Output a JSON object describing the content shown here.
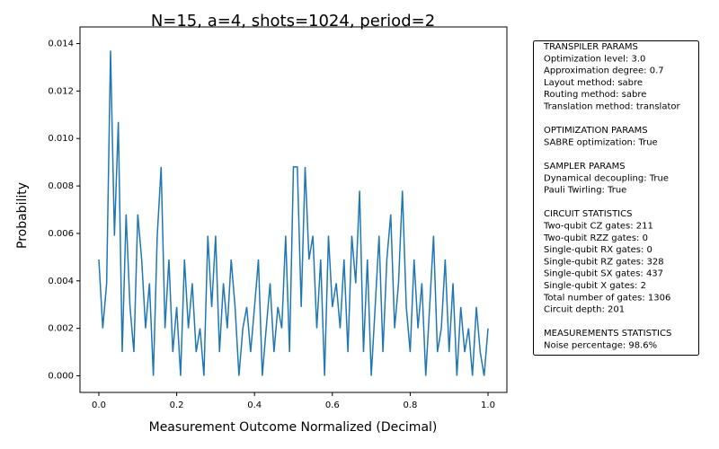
{
  "chart_data": {
    "type": "line",
    "title": "N=15, a=4, shots=1024, period=2",
    "x_label": "Measurement Outcome Normalized (Decimal)",
    "y_label": "Probability",
    "x": [
      0,
      0.01,
      0.02,
      0.03,
      0.04,
      0.05,
      0.06,
      0.07,
      0.08,
      0.09,
      0.1,
      0.11,
      0.12,
      0.13,
      0.14,
      0.15,
      0.16,
      0.17,
      0.18,
      0.19,
      0.2,
      0.21,
      0.22,
      0.23,
      0.24,
      0.25,
      0.26,
      0.27,
      0.28,
      0.29,
      0.3,
      0.31,
      0.32,
      0.33,
      0.34,
      0.35,
      0.36,
      0.37,
      0.38,
      0.39,
      0.4,
      0.41,
      0.42,
      0.43,
      0.44,
      0.45,
      0.46,
      0.47,
      0.48,
      0.49,
      0.5,
      0.51,
      0.52,
      0.53,
      0.54,
      0.55,
      0.56,
      0.57,
      0.58,
      0.59,
      0.6,
      0.61,
      0.62,
      0.63,
      0.64,
      0.65,
      0.66,
      0.67,
      0.68,
      0.69,
      0.7,
      0.71,
      0.72,
      0.73,
      0.74,
      0.75,
      0.76,
      0.77,
      0.78,
      0.79,
      0.8,
      0.81,
      0.82,
      0.83,
      0.84,
      0.85,
      0.86,
      0.87,
      0.88,
      0.89,
      0.9,
      0.91,
      0.92,
      0.93,
      0.94,
      0.95,
      0.96,
      0.97,
      0.98,
      0.99,
      1.0
    ],
    "series": [
      {
        "color": "#1f77b4",
        "values": [
          0.0049,
          0.002,
          0.0039,
          0.0137,
          0.0059,
          0.0107,
          0.001,
          0.0068,
          0.0029,
          0.001,
          0.0068,
          0.0049,
          0.002,
          0.0039,
          0.0,
          0.0059,
          0.0088,
          0.002,
          0.0049,
          0.001,
          0.0029,
          0.0,
          0.0049,
          0.002,
          0.0039,
          0.001,
          0.002,
          0.0,
          0.0059,
          0.0029,
          0.0059,
          0.001,
          0.0039,
          0.002,
          0.0049,
          0.0029,
          0.0,
          0.002,
          0.0029,
          0.001,
          0.0029,
          0.0049,
          0.0,
          0.002,
          0.0039,
          0.001,
          0.0029,
          0.002,
          0.0059,
          0.001,
          0.0088,
          0.0088,
          0.0029,
          0.0088,
          0.0049,
          0.0059,
          0.002,
          0.0049,
          0.0,
          0.0059,
          0.0029,
          0.0039,
          0.002,
          0.0049,
          0.001,
          0.0059,
          0.0039,
          0.0078,
          0.001,
          0.0049,
          0.0,
          0.0029,
          0.0059,
          0.001,
          0.0049,
          0.0068,
          0.002,
          0.0039,
          0.0078,
          0.0029,
          0.001,
          0.0049,
          0.002,
          0.0039,
          0.0,
          0.0029,
          0.0059,
          0.001,
          0.002,
          0.0049,
          0.001,
          0.0039,
          0.0,
          0.0029,
          0.001,
          0.002,
          0.0,
          0.0029,
          0.001,
          0.0,
          0.002
        ]
      }
    ],
    "xlim": [
      -0.0485,
      1.0485
    ],
    "ylim": [
      -0.0007,
      0.0147
    ],
    "xticks": [
      {
        "value": 0,
        "label": "0.0"
      },
      0.2,
      0.4,
      0.6,
      0.8,
      {
        "value": 1,
        "label": "1.0"
      }
    ],
    "yticks": [
      {
        "value": 0,
        "label": "0.000"
      },
      {
        "value": 0.002,
        "label": "0.002"
      },
      {
        "value": 0.004,
        "label": "0.004"
      },
      {
        "value": 0.006,
        "label": "0.006"
      },
      {
        "value": 0.008,
        "label": "0.008"
      },
      {
        "value": 0.01,
        "label": "0.010"
      },
      {
        "value": 0.012,
        "label": "0.012"
      },
      {
        "value": 0.014,
        "label": "0.014"
      }
    ],
    "info_box": [
      {
        "heading": "TRANSPILER PARAMS",
        "lines": [
          "Optimization level: 3.0",
          "Approximation degree: 0.7",
          "Layout method: sabre",
          "Routing method: sabre",
          "Translation method: translator"
        ]
      },
      {
        "heading": "OPTIMIZATION PARAMS",
        "lines": [
          "SABRE optimization: True"
        ]
      },
      {
        "heading": "SAMPLER PARAMS",
        "lines": [
          "Dynamical decoupling: True",
          "Pauli Twirling: True"
        ]
      },
      {
        "heading": "CIRCUIT STATISTICS",
        "lines": [
          "Two-qubit CZ gates: 211",
          "Two-qubit RZZ gates: 0",
          "Single-qubit RX gates: 0",
          "Single-qubit RZ gates: 328",
          "Single-qubit SX gates: 437",
          "Single-qubit X gates: 2",
          "Total number of gates: 1306",
          "Circuit depth: 201"
        ]
      },
      {
        "heading": "MEASUREMENTS STATISTICS",
        "lines": [
          "Noise percentage: 98.6%"
        ]
      }
    ]
  }
}
